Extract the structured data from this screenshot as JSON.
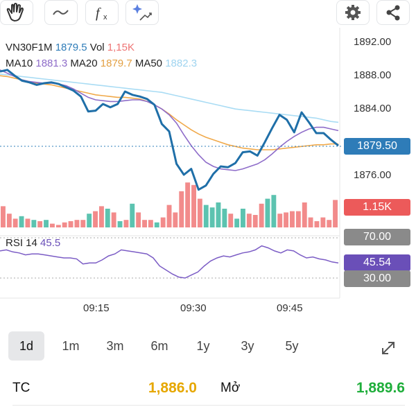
{
  "toolbar": {
    "icons": [
      "hand-icon",
      "wave-icon",
      "function-icon",
      "sparkle-chart-icon",
      "gear-icon",
      "share-icon"
    ]
  },
  "legend": {
    "symbol": "VN30F1M",
    "price": "1879.5",
    "vol_label": "Vol",
    "vol_value": "1,15K",
    "ma10_label": "MA10",
    "ma10_value": "1881.3",
    "ma20_label": "MA20",
    "ma20_value": "1879.7",
    "ma50_label": "MA50",
    "ma50_value": "1882.3"
  },
  "colors": {
    "price_line": "#1f6fa8",
    "ma10": "#8e6cc9",
    "ma20": "#f0a94a",
    "ma50": "#a9dcf4",
    "up": "#5cc3b0",
    "down": "#f28b8b",
    "rsi": "#7b5cc5",
    "last_tag": "#2e7cb8",
    "rsi_tag": "#6a4fb8",
    "gray_tag": "#8a8a8a",
    "stat_yellow": "#e6a700",
    "stat_green": "#1fae3b"
  },
  "axis": {
    "prices": [
      "1892.00",
      "1888.00",
      "1884.00",
      "1876.00"
    ],
    "last_price": "1879.50",
    "volume": "1.15K",
    "rsi_hi": "70.00",
    "rsi_val": "45.54",
    "rsi_lo": "30.00",
    "times": [
      "09:15",
      "09:30",
      "09:45"
    ]
  },
  "rsi": {
    "label": "RSI 14",
    "value": "45.5"
  },
  "periods": [
    "1d",
    "1m",
    "3m",
    "6m",
    "1y",
    "3y",
    "5y"
  ],
  "active_period": "1d",
  "stats": {
    "tc_label": "TC",
    "tc_value": "1,886.0",
    "open_label": "Mở",
    "open_value": "1,889.6"
  },
  "chart_data": {
    "type": "line",
    "price": [
      1888.4,
      1888.6,
      1887.9,
      1887.3,
      1887.1,
      1886.8,
      1887.0,
      1887.1,
      1886.9,
      1886.5,
      1886.1,
      1885.4,
      1883.6,
      1883.7,
      1884.5,
      1884.1,
      1884.5,
      1886.0,
      1885.6,
      1885.4,
      1885.1,
      1884.4,
      1882.1,
      1881.2,
      1877.3,
      1876.0,
      1876.7,
      1874.2,
      1874.7,
      1876.1,
      1877.0,
      1876.9,
      1877.4,
      1878.7,
      1878.8,
      1878.3,
      1879.9,
      1881.6,
      1883.2,
      1882.6,
      1881.1,
      1883.5,
      1882.3,
      1881.0,
      1881.0,
      1880.2,
      1879.5
    ],
    "ma10": [
      1888.6,
      1888.2,
      1887.8,
      1887.4,
      1887.2,
      1887.1,
      1887.0,
      1887.0,
      1886.9,
      1886.7,
      1886.3,
      1885.8,
      1885.3,
      1885.0,
      1884.9,
      1884.8,
      1884.8,
      1884.9,
      1885.0,
      1885.0,
      1884.8,
      1884.4,
      1883.9,
      1883.2,
      1882.2,
      1880.8,
      1879.5,
      1878.4,
      1877.5,
      1877.0,
      1876.7,
      1876.6,
      1876.5,
      1876.7,
      1877.0,
      1877.3,
      1877.8,
      1878.5,
      1879.3,
      1880.0,
      1880.6,
      1881.1,
      1881.5,
      1881.7,
      1881.7,
      1881.5,
      1881.3
    ],
    "ma20": [
      1887.9,
      1887.8,
      1887.6,
      1887.4,
      1887.2,
      1887.0,
      1886.9,
      1886.8,
      1886.6,
      1886.4,
      1886.2,
      1886.0,
      1885.8,
      1885.6,
      1885.5,
      1885.4,
      1885.3,
      1885.3,
      1885.2,
      1885.1,
      1884.8,
      1884.4,
      1883.9,
      1883.3,
      1882.6,
      1882.0,
      1881.4,
      1880.9,
      1880.5,
      1880.2,
      1879.9,
      1879.6,
      1879.4,
      1879.2,
      1879.1,
      1879.0,
      1879.0,
      1879.0,
      1879.1,
      1879.2,
      1879.3,
      1879.4,
      1879.5,
      1879.6,
      1879.6,
      1879.7,
      1879.7
    ],
    "ma50": [
      1888.1,
      1888.0,
      1887.9,
      1887.8,
      1887.7,
      1887.6,
      1887.5,
      1887.4,
      1887.3,
      1887.2,
      1887.1,
      1887.0,
      1886.9,
      1886.8,
      1886.7,
      1886.6,
      1886.5,
      1886.4,
      1886.3,
      1886.2,
      1886.1,
      1886.0,
      1885.9,
      1885.7,
      1885.5,
      1885.3,
      1885.1,
      1884.9,
      1884.7,
      1884.5,
      1884.3,
      1884.1,
      1883.9,
      1883.8,
      1883.7,
      1883.6,
      1883.5,
      1883.4,
      1883.3,
      1883.2,
      1883.1,
      1883.0,
      1882.9,
      1882.8,
      1882.6,
      1882.4,
      1882.3
    ],
    "volume": [
      0.85,
      0.55,
      0.35,
      0.45,
      0.35,
      0.3,
      0.25,
      0.3,
      0.15,
      0.1,
      0.2,
      0.25,
      0.3,
      0.3,
      0.55,
      0.65,
      0.85,
      0.75,
      0.6,
      0.25,
      0.3,
      0.95,
      0.6,
      0.3,
      0.3,
      0.2,
      0.4,
      0.9,
      0.6,
      1.45,
      1.8,
      1.7,
      1.15,
      0.9,
      0.8,
      1.0,
      0.75,
      0.55,
      0.35,
      0.75,
      0.55,
      0.5,
      0.95,
      1.15,
      1.3,
      0.55,
      0.6,
      0.65,
      0.65,
      1.0,
      0.4,
      0.25,
      0.4,
      0.3,
      1.1
    ],
    "volume_up": [
      false,
      false,
      false,
      true,
      false,
      true,
      false,
      true,
      false,
      false,
      false,
      false,
      false,
      false,
      true,
      false,
      false,
      true,
      false,
      true,
      false,
      true,
      false,
      false,
      false,
      true,
      false,
      false,
      false,
      false,
      false,
      false,
      false,
      true,
      true,
      true,
      true,
      false,
      true,
      true,
      false,
      false,
      false,
      true,
      true,
      false,
      false,
      false,
      false,
      false,
      false,
      false,
      false,
      false,
      false
    ],
    "rsi": [
      57,
      58,
      56,
      55,
      53,
      54,
      54,
      53,
      52,
      51,
      50,
      50,
      49,
      44,
      45,
      45,
      48,
      52,
      54,
      58,
      57,
      56,
      55,
      54,
      50,
      42,
      38,
      34,
      31,
      30,
      33,
      36,
      42,
      47,
      50,
      52,
      51,
      53,
      55,
      56,
      58,
      62,
      60,
      57,
      55,
      58,
      57,
      53,
      50,
      51,
      49,
      48,
      46,
      45
    ],
    "ylim": [
      1872.8,
      1892.0
    ]
  }
}
